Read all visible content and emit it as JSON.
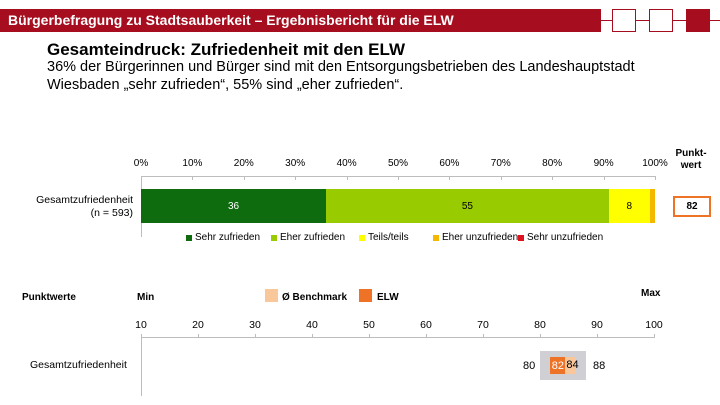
{
  "header": {
    "title": "Bürgerbefragung zu Stadtsauberkeit – Ergebnisbericht für die ELW",
    "brand_color": "#a60d1e"
  },
  "slide": {
    "title": "Gesamteindruck: Zufriedenheit mit den ELW",
    "subtitle": "36% der Bürgerinnen und Bürger sind mit den Entsorgungsbetrieben des Landeshauptstadt Wiesbaden „sehr zufrieden“, 55% sind „eher zufrieden“."
  },
  "chart_data": [
    {
      "type": "bar",
      "orientation": "horizontal-stacked-100",
      "categories": [
        "Gesamtzufriedenheit"
      ],
      "category_sublabel": "(n = 593)",
      "xlim": [
        0,
        100
      ],
      "x_ticks": [
        "0%",
        "10%",
        "20%",
        "30%",
        "40%",
        "50%",
        "60%",
        "70%",
        "80%",
        "90%",
        "100%"
      ],
      "series": [
        {
          "name": "Sehr zufrieden",
          "values": [
            36
          ],
          "color": "#0e6b0e",
          "label": "36",
          "label_color": "#ffffff"
        },
        {
          "name": "Eher zufrieden",
          "values": [
            55
          ],
          "color": "#99cc00",
          "label": "55",
          "label_color": "#000000"
        },
        {
          "name": "Teils/teils",
          "values": [
            8
          ],
          "color": "#ffff00",
          "label": "8",
          "label_color": "#000000"
        },
        {
          "name": "Eher unzufrieden",
          "values": [
            1
          ],
          "color": "#f5b800",
          "label": "",
          "label_color": "#000000"
        },
        {
          "name": "Sehr unzufrieden",
          "values": [
            0
          ],
          "color": "#e0101e",
          "label": "",
          "label_color": "#000000"
        }
      ],
      "legend_position": "bottom",
      "punktwert_header": "Punkt-\nwert",
      "punktwert_header_line1": "Punkt-",
      "punktwert_header_line2": "wert",
      "punktwert_value": "82"
    },
    {
      "type": "range",
      "title": "Punktwerte",
      "min_label": "Min",
      "max_label": "Max",
      "xlim": [
        10,
        100
      ],
      "x_ticks": [
        "10",
        "20",
        "30",
        "40",
        "50",
        "60",
        "70",
        "80",
        "90",
        "100"
      ],
      "legend": [
        {
          "name": "Ø Benchmark",
          "color": "#f9c79a"
        },
        {
          "name": "ELW",
          "color": "#ee7326"
        }
      ],
      "rows": [
        {
          "label": "Gesamtzufriedenheit",
          "min": 80,
          "max": 88,
          "elw": 82,
          "benchmark": 84,
          "min_label": "80",
          "max_label": "88",
          "elw_label": "82",
          "benchmark_label": "84"
        }
      ]
    }
  ]
}
